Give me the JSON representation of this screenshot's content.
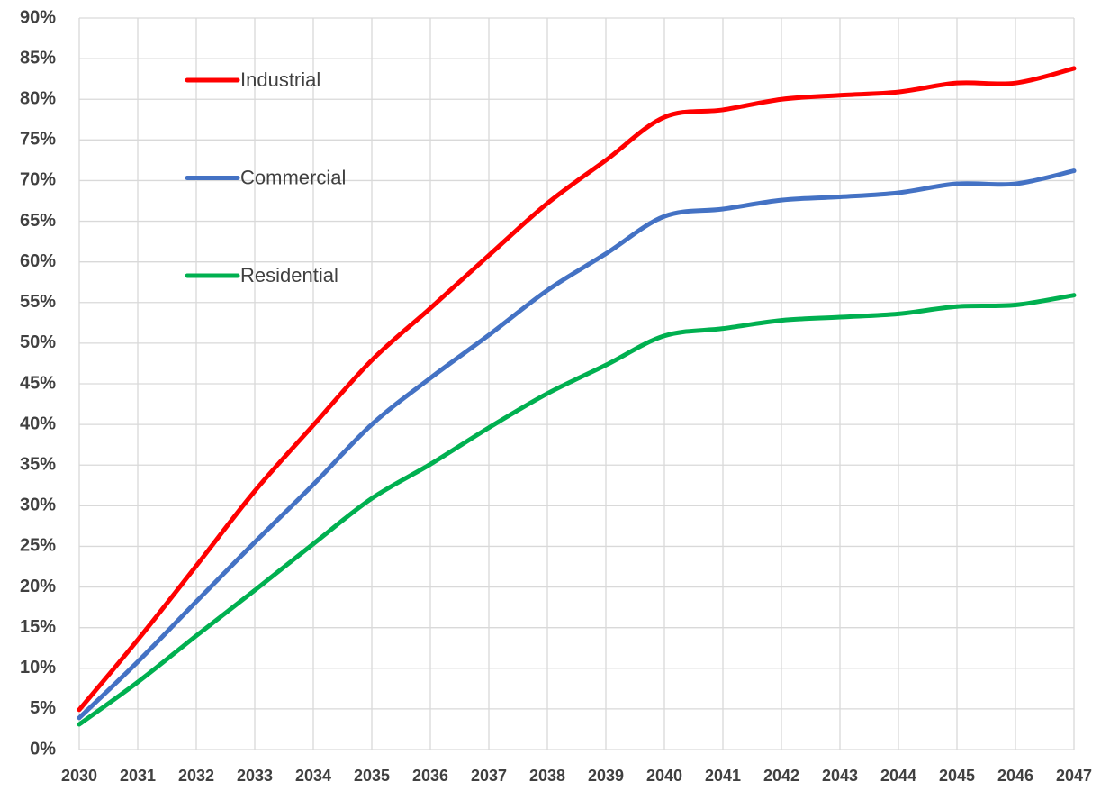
{
  "chart_data": {
    "type": "line",
    "x": [
      2030,
      2031,
      2032,
      2033,
      2034,
      2035,
      2036,
      2037,
      2038,
      2039,
      2040,
      2041,
      2042,
      2043,
      2044,
      2045,
      2046,
      2047
    ],
    "xlim": [
      2030,
      2047
    ],
    "xticks": [
      2030,
      2031,
      2032,
      2033,
      2034,
      2035,
      2036,
      2037,
      2038,
      2039,
      2040,
      2041,
      2042,
      2043,
      2044,
      2045,
      2046,
      2047
    ],
    "ylim": [
      0,
      90
    ],
    "yticks": [
      {
        "value": 0,
        "label": "0%"
      },
      {
        "value": 5,
        "label": "5%"
      },
      {
        "value": 10,
        "label": "10%"
      },
      {
        "value": 15,
        "label": "15%"
      },
      {
        "value": 20,
        "label": "20%"
      },
      {
        "value": 25,
        "label": "25%"
      },
      {
        "value": 30,
        "label": "30%"
      },
      {
        "value": 35,
        "label": "35%"
      },
      {
        "value": 40,
        "label": "40%"
      },
      {
        "value": 45,
        "label": "45%"
      },
      {
        "value": 50,
        "label": "50%"
      },
      {
        "value": 55,
        "label": "55%"
      },
      {
        "value": 60,
        "label": "60%"
      },
      {
        "value": 65,
        "label": "65%"
      },
      {
        "value": 70,
        "label": "70%"
      },
      {
        "value": 75,
        "label": "75%"
      },
      {
        "value": 80,
        "label": "80%"
      },
      {
        "value": 85,
        "label": "85%"
      },
      {
        "value": 90,
        "label": "90%"
      }
    ],
    "grid": true,
    "legend": "upper left",
    "series": [
      {
        "name": "Industrial",
        "color": "#ff0000",
        "values": [
          4.9,
          13.5,
          22.6,
          31.8,
          39.9,
          47.9,
          54.3,
          60.8,
          67.2,
          72.5,
          77.8,
          78.7,
          80.0,
          80.5,
          80.9,
          82.0,
          82.0,
          83.8
        ]
      },
      {
        "name": "Commercial",
        "color": "#4472c4",
        "values": [
          3.9,
          10.8,
          18.2,
          25.5,
          32.6,
          40.0,
          45.7,
          51.0,
          56.5,
          61.0,
          65.6,
          66.5,
          67.6,
          68.0,
          68.5,
          69.6,
          69.6,
          71.2
        ]
      },
      {
        "name": "Residential",
        "color": "#00b050",
        "values": [
          3.1,
          8.3,
          14.0,
          19.6,
          25.3,
          30.9,
          35.1,
          39.6,
          43.8,
          47.3,
          50.9,
          51.8,
          52.8,
          53.2,
          53.6,
          54.5,
          54.7,
          55.9
        ]
      }
    ]
  }
}
